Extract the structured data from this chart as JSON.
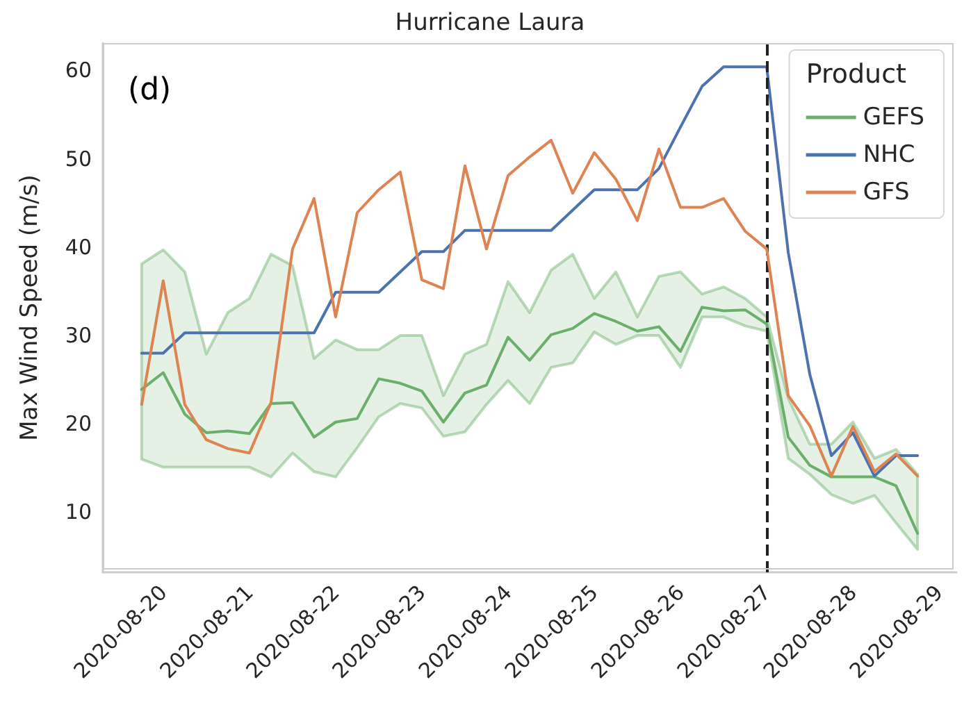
{
  "chart_data": {
    "type": "line",
    "title": "Hurricane Laura",
    "ylabel": "Max Wind Speed (m/s)",
    "legend_title": "Product",
    "annotations": [
      "(d)"
    ],
    "x": [
      "2020-08-19T18:00",
      "2020-08-20T00:00",
      "2020-08-20T06:00",
      "2020-08-20T12:00",
      "2020-08-20T18:00",
      "2020-08-21T00:00",
      "2020-08-21T06:00",
      "2020-08-21T12:00",
      "2020-08-21T18:00",
      "2020-08-22T00:00",
      "2020-08-22T06:00",
      "2020-08-22T12:00",
      "2020-08-22T18:00",
      "2020-08-23T00:00",
      "2020-08-23T06:00",
      "2020-08-23T12:00",
      "2020-08-23T18:00",
      "2020-08-24T00:00",
      "2020-08-24T06:00",
      "2020-08-24T12:00",
      "2020-08-24T18:00",
      "2020-08-25T00:00",
      "2020-08-25T06:00",
      "2020-08-25T12:00",
      "2020-08-25T18:00",
      "2020-08-26T00:00",
      "2020-08-26T06:00",
      "2020-08-26T12:00",
      "2020-08-26T18:00",
      "2020-08-27T00:00",
      "2020-08-27T06:00",
      "2020-08-27T12:00",
      "2020-08-27T18:00",
      "2020-08-28T00:00",
      "2020-08-28T06:00",
      "2020-08-28T12:00",
      "2020-08-28T18:00"
    ],
    "series": [
      {
        "name": "GEFS",
        "color": "#6aaf6a",
        "values": [
          23.9,
          25.8,
          21.1,
          19.0,
          19.2,
          18.9,
          22.3,
          22.4,
          18.5,
          20.2,
          20.6,
          25.1,
          24.6,
          23.7,
          20.2,
          23.5,
          24.4,
          29.8,
          27.2,
          30.1,
          30.8,
          32.5,
          31.6,
          30.5,
          31.0,
          28.2,
          33.2,
          32.8,
          32.9,
          31.3,
          18.5,
          15.3,
          14.0,
          14.0,
          14.0,
          13.0,
          7.6
        ],
        "lower": [
          16.0,
          15.1,
          15.1,
          15.1,
          15.1,
          15.1,
          14.0,
          16.7,
          14.6,
          14.0,
          17.3,
          20.8,
          22.3,
          21.8,
          18.6,
          19.1,
          22.2,
          24.9,
          22.3,
          26.4,
          26.9,
          30.4,
          29.0,
          30.0,
          30.0,
          26.4,
          32.1,
          32.1,
          31.1,
          30.5,
          16.1,
          14.3,
          12.0,
          11.0,
          11.9,
          8.8,
          5.8
        ],
        "upper": [
          38.1,
          39.7,
          37.2,
          27.9,
          32.6,
          34.2,
          39.2,
          37.9,
          27.4,
          29.5,
          28.4,
          28.4,
          30.0,
          30.0,
          23.2,
          27.9,
          29.0,
          36.1,
          32.6,
          37.4,
          39.2,
          34.2,
          37.2,
          32.1,
          36.7,
          37.2,
          34.7,
          35.5,
          34.2,
          32.1,
          22.9,
          17.7,
          17.7,
          20.2,
          16.1,
          17.1,
          14.3
        ]
      },
      {
        "name": "NHC",
        "color": "#4c72b0",
        "values": [
          28.0,
          28.0,
          30.3,
          30.3,
          30.3,
          30.3,
          30.3,
          30.3,
          30.3,
          34.9,
          34.9,
          34.9,
          37.2,
          39.5,
          39.5,
          41.9,
          41.9,
          41.9,
          41.9,
          41.9,
          44.2,
          46.5,
          46.5,
          46.5,
          48.9,
          53.6,
          58.2,
          60.4,
          60.4,
          60.4,
          39.4,
          25.6,
          16.4,
          19.0,
          14.1,
          16.4,
          16.4
        ]
      },
      {
        "name": "GFS",
        "color": "#dd8452",
        "values": [
          22.2,
          36.2,
          22.2,
          18.2,
          17.2,
          16.7,
          22.4,
          39.8,
          45.5,
          32.1,
          43.9,
          46.5,
          48.5,
          36.3,
          35.3,
          49.2,
          39.8,
          48.1,
          50.2,
          52.1,
          46.1,
          50.7,
          47.7,
          43.0,
          51.1,
          44.5,
          44.5,
          45.5,
          41.8,
          39.8,
          23.2,
          19.8,
          14.1,
          19.7,
          14.6,
          16.6,
          14.1
        ]
      }
    ],
    "xlim": [
      "2020-08-19T07:12",
      "2020-08-29T04:48"
    ],
    "xticks": [
      "2020-08-20",
      "2020-08-21",
      "2020-08-22",
      "2020-08-23",
      "2020-08-24",
      "2020-08-25",
      "2020-08-26",
      "2020-08-27",
      "2020-08-28",
      "2020-08-29"
    ],
    "ylim": [
      3.2,
      63.1
    ],
    "yticks": [
      10,
      20,
      30,
      40,
      50,
      60
    ],
    "ref_lines": [
      {
        "axis": "x",
        "value": "2020-08-27",
        "color": "#222222",
        "line_style": "dashed"
      }
    ],
    "legend": "top right",
    "grid": false,
    "marker": "none",
    "line_style": "solid"
  }
}
